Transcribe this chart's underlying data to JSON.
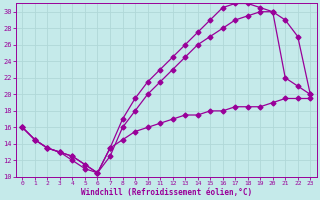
{
  "xlabel": "Windchill (Refroidissement éolien,°C)",
  "bg_color": "#c5eaea",
  "line_color": "#990099",
  "grid_color": "#b0d8d8",
  "xlim": [
    -0.5,
    23.5
  ],
  "ylim": [
    10,
    31
  ],
  "xticks": [
    0,
    1,
    2,
    3,
    4,
    5,
    6,
    7,
    8,
    9,
    10,
    11,
    12,
    13,
    14,
    15,
    16,
    17,
    18,
    19,
    20,
    21,
    22,
    23
  ],
  "yticks": [
    10,
    12,
    14,
    16,
    18,
    20,
    22,
    24,
    26,
    28,
    30
  ],
  "line1_x": [
    0,
    1,
    2,
    3,
    4,
    5,
    6,
    7,
    8,
    9,
    10,
    11,
    12,
    13,
    14,
    15,
    16,
    17,
    18,
    19,
    20,
    21,
    22,
    23
  ],
  "line1_y": [
    16,
    14.5,
    13.5,
    13,
    12.5,
    11.5,
    10.5,
    13.5,
    17,
    19.5,
    21.5,
    23,
    24.5,
    26,
    27.5,
    29,
    30.5,
    31,
    31,
    30.5,
    30,
    29,
    27,
    20
  ],
  "line2_x": [
    0,
    1,
    2,
    3,
    4,
    5,
    6,
    7,
    8,
    9,
    10,
    11,
    12,
    13,
    14,
    15,
    16,
    17,
    18,
    19,
    20,
    21,
    22,
    23
  ],
  "line2_y": [
    16,
    14.5,
    13.5,
    13,
    12,
    11,
    10.5,
    12.5,
    16,
    18,
    20,
    21.5,
    23,
    24.5,
    26,
    27,
    28,
    29,
    29.5,
    30,
    30,
    22,
    21,
    20
  ],
  "line3_x": [
    0,
    1,
    2,
    3,
    4,
    5,
    6,
    7,
    8,
    9,
    10,
    11,
    12,
    13,
    14,
    15,
    16,
    17,
    18,
    19,
    20,
    21,
    22,
    23
  ],
  "line3_y": [
    16,
    14.5,
    13.5,
    13,
    12.5,
    11.5,
    10.5,
    13.5,
    14.5,
    15.5,
    16,
    16.5,
    17,
    17.5,
    17.5,
    18,
    18,
    18.5,
    18.5,
    18.5,
    19,
    19.5,
    19.5,
    19.5
  ]
}
